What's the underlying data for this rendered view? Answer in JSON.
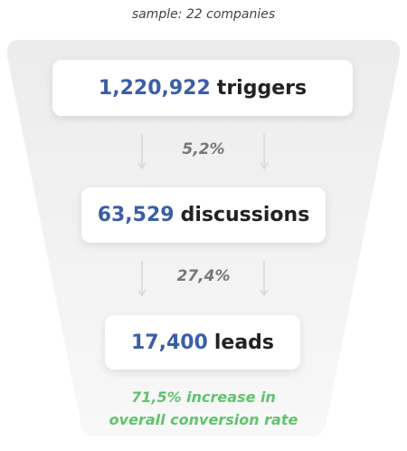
{
  "subtitle": "sample: 22 companies",
  "stages": [
    {
      "value": "1,220,922",
      "label": "triggers"
    },
    {
      "value": "63,529",
      "label": "discussions"
    },
    {
      "value": "17,400",
      "label": "leads"
    }
  ],
  "rates": [
    "5,2%",
    "27,4%"
  ],
  "footnote": [
    "71,5% increase in",
    "overall conversion rate"
  ]
}
